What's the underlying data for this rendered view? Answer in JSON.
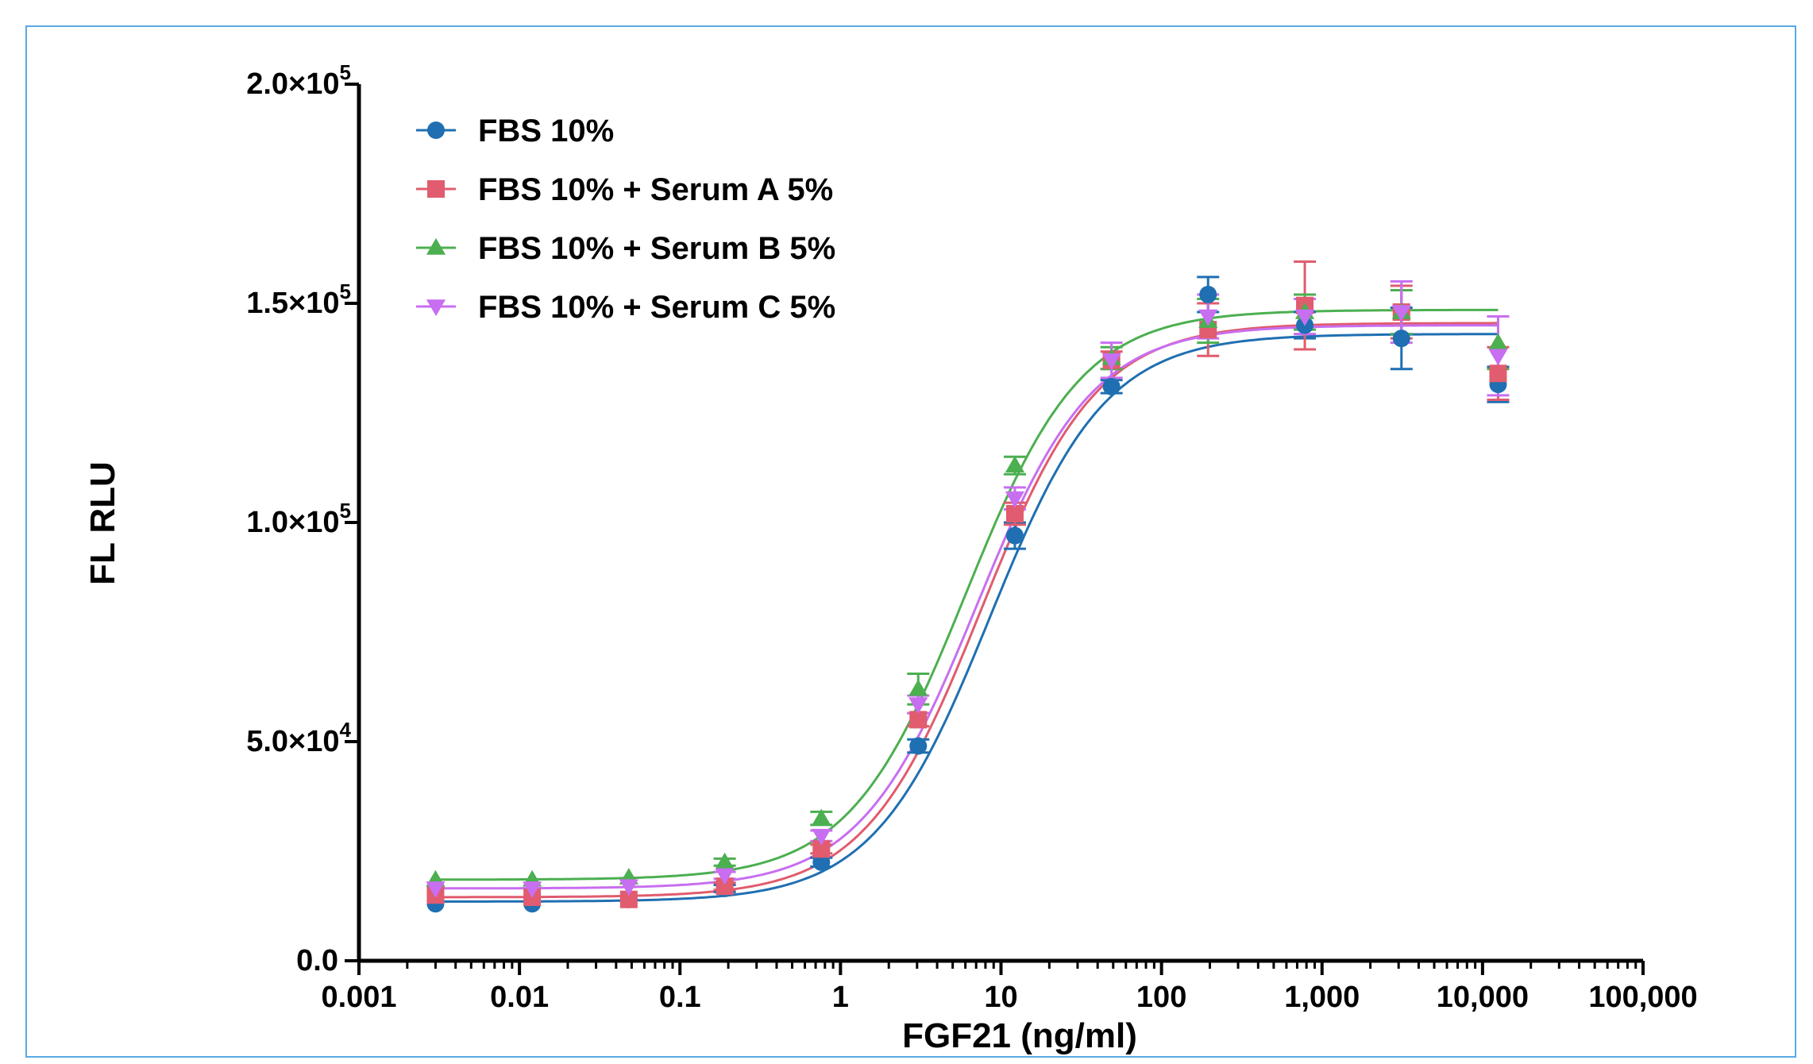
{
  "chart_data": {
    "type": "scatter",
    "title": "",
    "xlabel": "FGF21 (ng/ml)",
    "ylabel": "FL RLU",
    "x_scale": "log",
    "xlim": [
      0.001,
      100000
    ],
    "ylim": [
      0,
      200000
    ],
    "x_ticks": [
      {
        "value": 0.001,
        "label": "0.001"
      },
      {
        "value": 0.01,
        "label": "0.01"
      },
      {
        "value": 0.1,
        "label": "0.1"
      },
      {
        "value": 1,
        "label": "1"
      },
      {
        "value": 10,
        "label": "10"
      },
      {
        "value": 100,
        "label": "100"
      },
      {
        "value": 1000,
        "label": "1,000"
      },
      {
        "value": 10000,
        "label": "10,000"
      },
      {
        "value": 100000,
        "label": "100,000"
      }
    ],
    "y_ticks": [
      {
        "value": 0,
        "mant": "0.0",
        "exp": ""
      },
      {
        "value": 50000,
        "mant": "5.0×10",
        "exp": "4"
      },
      {
        "value": 100000,
        "mant": "1.0×10",
        "exp": "5"
      },
      {
        "value": 150000,
        "mant": "1.5×10",
        "exp": "5"
      },
      {
        "value": 200000,
        "mant": "2.0×10",
        "exp": "5"
      }
    ],
    "grid": false,
    "legend_position": "top-left",
    "x": [
      0.003,
      0.012,
      0.048,
      0.19,
      0.76,
      3.05,
      12.2,
      48.8,
      195,
      781,
      3125,
      12500
    ],
    "series": [
      {
        "name": "FBS 10%",
        "color": "#1f6fb2",
        "marker": "circle",
        "values": [
          13000,
          13000,
          14000,
          16500,
          22500,
          49000,
          97000,
          131000,
          152000,
          145000,
          142000,
          131500
        ],
        "errors": [
          500,
          500,
          500,
          800,
          1000,
          1500,
          3000,
          1500,
          4000,
          3000,
          7000,
          4000
        ],
        "fit": {
          "bottom": 13500,
          "top": 143000,
          "ec50": 8.5,
          "hill": 1.2
        }
      },
      {
        "name": "FBS 10% + Serum A 5%",
        "color": "#e05c6e",
        "marker": "square",
        "values": [
          15000,
          14500,
          14000,
          17000,
          25500,
          55000,
          102000,
          137000,
          144000,
          149500,
          148000,
          134000
        ],
        "errors": [
          500,
          500,
          500,
          800,
          1000,
          1500,
          2500,
          2000,
          6000,
          10000,
          6000,
          6000
        ],
        "fit": {
          "bottom": 14500,
          "top": 145500,
          "ec50": 7.5,
          "hill": 1.2
        }
      },
      {
        "name": "FBS 10% + Serum B 5%",
        "color": "#4caf50",
        "marker": "triangle-up",
        "values": [
          18500,
          18500,
          19000,
          22500,
          32500,
          62000,
          113000,
          137500,
          146000,
          148000,
          148000,
          141000
        ],
        "errors": [
          500,
          500,
          500,
          800,
          1500,
          3500,
          2000,
          2500,
          5000,
          4000,
          5000,
          6000
        ],
        "fit": {
          "bottom": 18500,
          "top": 148500,
          "ec50": 6.0,
          "hill": 1.2
        }
      },
      {
        "name": "FBS 10% + Serum C 5%",
        "color": "#c86ef0",
        "marker": "triangle-down",
        "values": [
          16500,
          16500,
          17000,
          19500,
          28500,
          58500,
          105500,
          137000,
          147000,
          147000,
          148000,
          138000
        ],
        "errors": [
          500,
          500,
          500,
          800,
          1200,
          2000,
          2500,
          4000,
          5000,
          4000,
          7000,
          9000
        ],
        "fit": {
          "bottom": 16500,
          "top": 145000,
          "ec50": 7.0,
          "hill": 1.2
        }
      }
    ]
  }
}
